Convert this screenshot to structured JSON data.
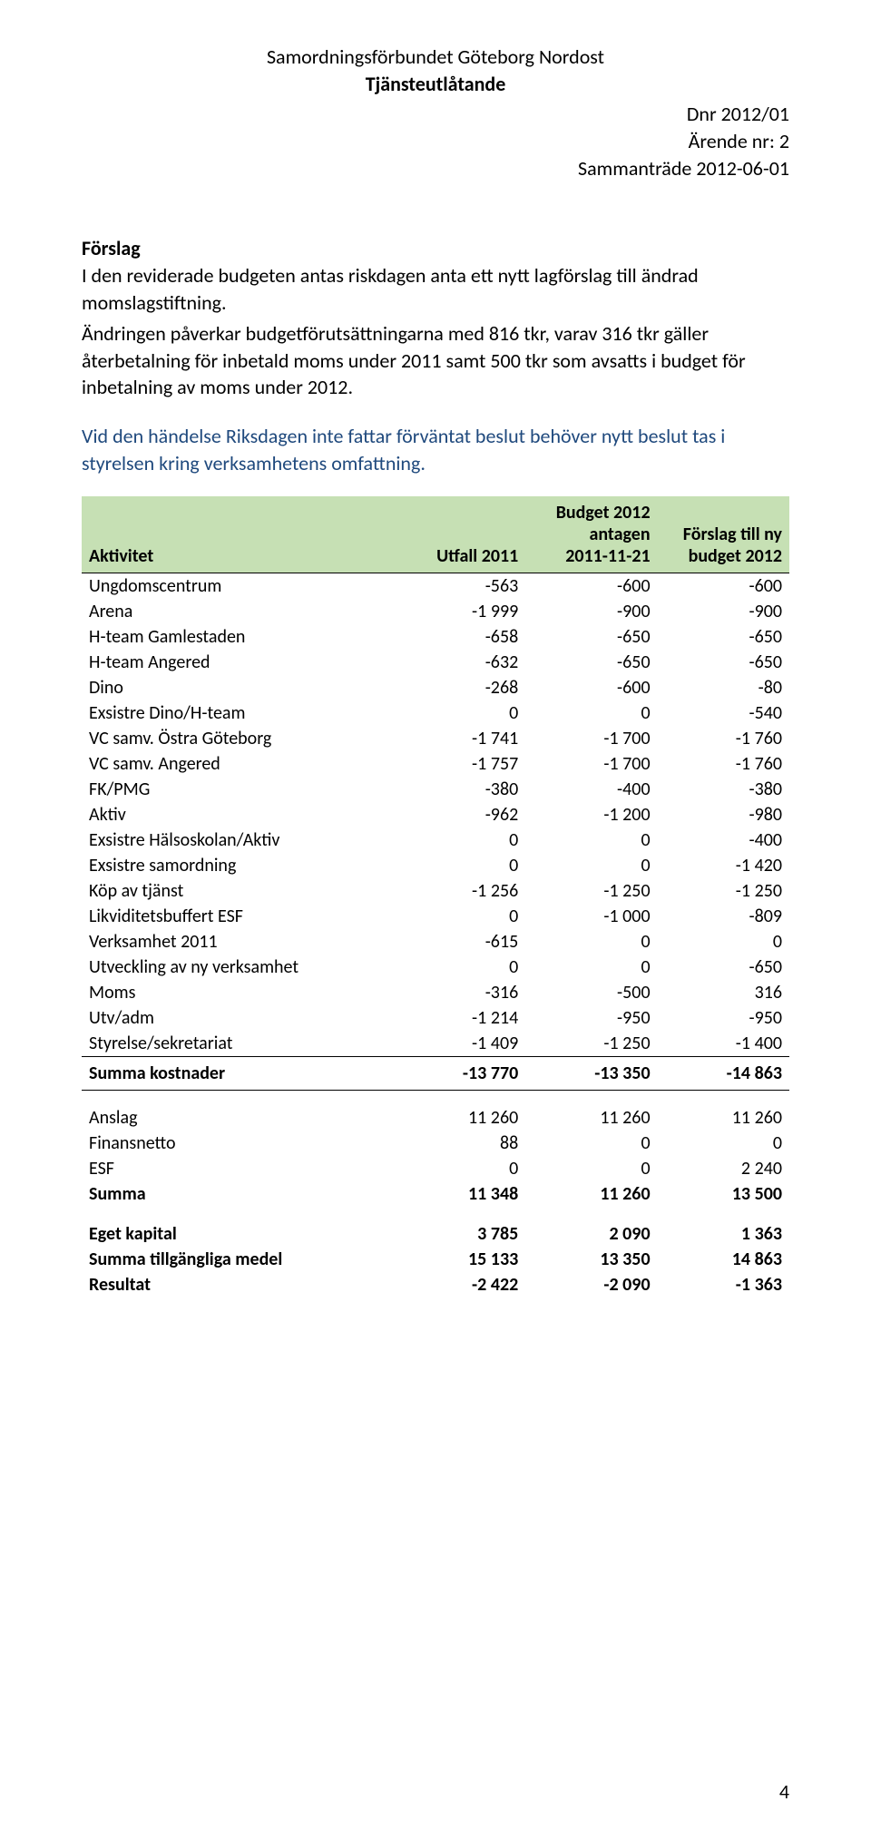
{
  "header": {
    "org": "Samordningsförbundet Göteborg Nordost",
    "doc_type": "Tjänsteutlåtande",
    "dnr": "Dnr 2012/01",
    "arende": "Ärende nr: 2",
    "meeting": "Sammanträde 2012-06-01"
  },
  "proposal": {
    "heading": "Förslag",
    "p1": "I den reviderade budgeten antas riskdagen anta ett nytt lagförslag till ändrad momslagstiftning.",
    "p2": "Ändringen påverkar budgetförutsättningarna med 816 tkr, varav 316 tkr gäller återbetalning för inbetald moms under 2011 samt 500 tkr som avsatts i budget för inbetalning av moms under 2012.",
    "p3": "Vid den händelse Riksdagen inte fattar förväntat beslut behöver nytt beslut tas i styrelsen kring verksamhetens omfattning."
  },
  "table": {
    "columns": {
      "activity": "Aktivitet",
      "utfall": "Utfall 2011",
      "budget2012_line1": "Budget 2012",
      "budget2012_line2": "antagen",
      "budget2012_line3": "2011-11-21",
      "forslag_line1": "Förslag till ny",
      "forslag_line2": "budget 2012"
    },
    "rows": [
      {
        "label": "Ungdomscentrum",
        "a": "-563",
        "b": "-600",
        "c": "-600"
      },
      {
        "label": "Arena",
        "a": "-1 999",
        "b": "-900",
        "c": "-900"
      },
      {
        "label": "H-team Gamlestaden",
        "a": "-658",
        "b": "-650",
        "c": "-650"
      },
      {
        "label": "H-team Angered",
        "a": "-632",
        "b": "-650",
        "c": "-650"
      },
      {
        "label": "Dino",
        "a": "-268",
        "b": "-600",
        "c": "-80"
      },
      {
        "label": "Exsistre Dino/H-team",
        "a": "0",
        "b": "0",
        "c": "-540"
      },
      {
        "label": "VC samv. Östra Göteborg",
        "a": "-1 741",
        "b": "-1 700",
        "c": "-1 760"
      },
      {
        "label": "VC samv. Angered",
        "a": "-1 757",
        "b": "-1 700",
        "c": "-1 760"
      },
      {
        "label": "FK/PMG",
        "a": "-380",
        "b": "-400",
        "c": "-380"
      },
      {
        "label": "Aktiv",
        "a": "-962",
        "b": "-1 200",
        "c": "-980"
      },
      {
        "label": "Exsistre Hälsoskolan/Aktiv",
        "a": "0",
        "b": "0",
        "c": "-400"
      },
      {
        "label": "Exsistre samordning",
        "a": "0",
        "b": "0",
        "c": "-1 420"
      },
      {
        "label": "Köp av tjänst",
        "a": "-1 256",
        "b": "-1 250",
        "c": "-1 250"
      },
      {
        "label": "Likviditetsbuffert ESF",
        "a": "0",
        "b": "-1 000",
        "c": "-809"
      },
      {
        "label": "Verksamhet 2011",
        "a": "-615",
        "b": "0",
        "c": "0"
      },
      {
        "label": "Utveckling av ny verksamhet",
        "a": "0",
        "b": "0",
        "c": "-650"
      },
      {
        "label": "Moms",
        "a": "-316",
        "b": "-500",
        "c": "316"
      },
      {
        "label": "Utv/adm",
        "a": "-1 214",
        "b": "-950",
        "c": "-950"
      },
      {
        "label": "Styrelse/sekretariat",
        "a": "-1 409",
        "b": "-1 250",
        "c": "-1 400"
      }
    ],
    "sum_costs": {
      "label": "Summa kostnader",
      "a": "-13 770",
      "b": "-13 350",
      "c": "-14 863"
    },
    "income": [
      {
        "label": "Anslag",
        "a": "11 260",
        "b": "11 260",
        "c": "11 260"
      },
      {
        "label": "Finansnetto",
        "a": "88",
        "b": "0",
        "c": "0"
      },
      {
        "label": "ESF",
        "a": "0",
        "b": "0",
        "c": "2 240"
      }
    ],
    "sum_income": {
      "label": "Summa",
      "a": "11 348",
      "b": "11 260",
      "c": "13 500"
    },
    "footer": [
      {
        "label": "Eget kapital",
        "a": "3 785",
        "b": "2 090",
        "c": "1 363"
      },
      {
        "label": "Summa tillgängliga medel",
        "a": "15 133",
        "b": "13 350",
        "c": "14 863"
      },
      {
        "label": "Resultat",
        "a": "-2 422",
        "b": "-2 090",
        "c": "-1 363"
      }
    ]
  },
  "page_number": "4",
  "style": {
    "header_bg": "#c6e0b4",
    "blue": "#1f497d",
    "text": "#000000",
    "bg": "#ffffff",
    "font_body_pt": 22,
    "font_table_pt": 20
  }
}
